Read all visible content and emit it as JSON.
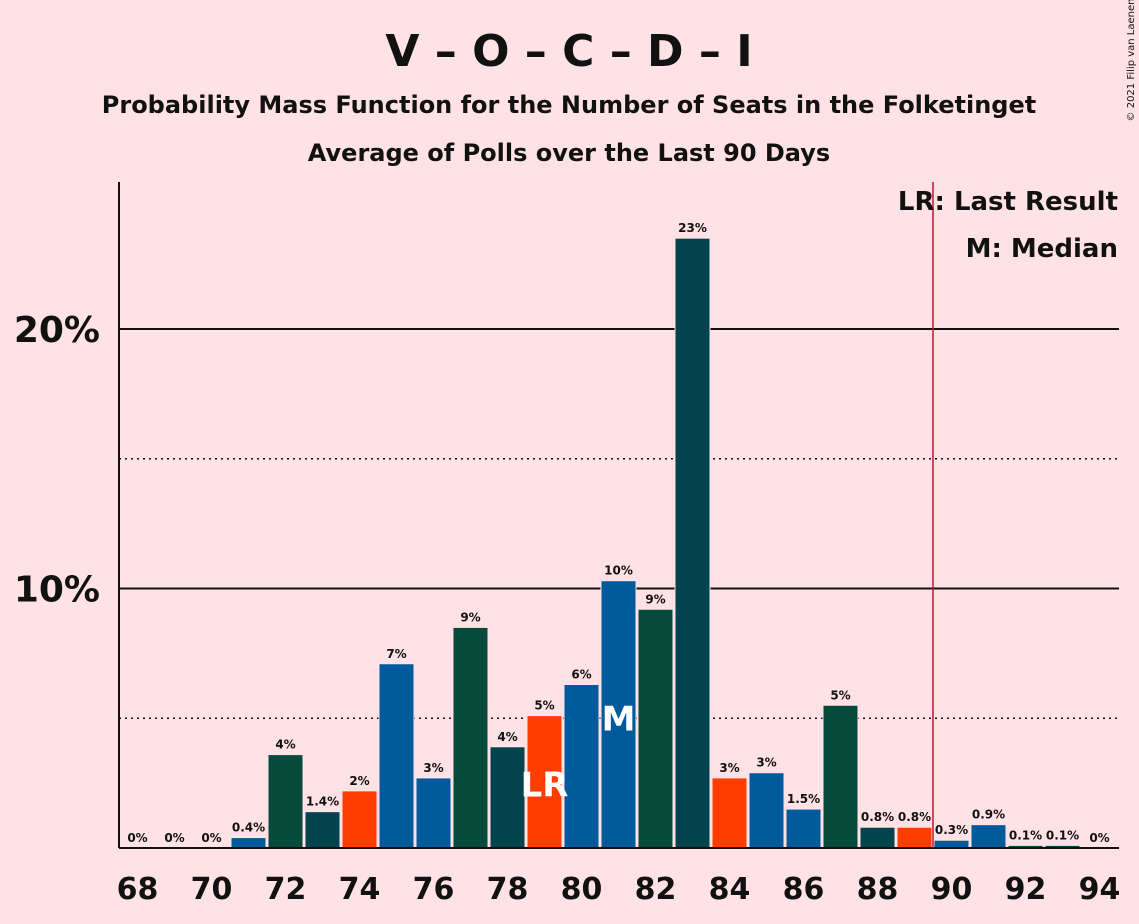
{
  "title": "V – O – C – D – I",
  "subtitle1": "Probability Mass Function for the Number of Seats in the Folketinget",
  "subtitle2": "Average of Polls over the Last 90 Days",
  "copyright": "© 2021 Filip van Laenen",
  "legend": {
    "lr": "LR: Last Result",
    "m": "M: Median"
  },
  "colors": {
    "background": "#FFE2E6",
    "blue": "#005A9C",
    "dark_green": "#064A3C",
    "dark_teal": "#01444E",
    "orange": "#FF3D00",
    "majority_line": "#C8102E"
  },
  "chart_data": {
    "type": "bar",
    "x": [
      68,
      69,
      70,
      71,
      72,
      73,
      74,
      75,
      76,
      77,
      78,
      79,
      80,
      81,
      82,
      83,
      84,
      85,
      86,
      87,
      88,
      89,
      90,
      91,
      92,
      93,
      94
    ],
    "values": [
      0,
      0,
      0,
      0.4,
      3.6,
      1.4,
      2.2,
      7.1,
      2.7,
      8.5,
      3.9,
      5.1,
      6.3,
      10.3,
      9.2,
      23.5,
      2.7,
      2.9,
      1.5,
      5.5,
      0.8,
      0.8,
      0.3,
      0.9,
      0.1,
      0.1,
      0
    ],
    "value_labels": [
      "0%",
      "0%",
      "0%",
      "0.4%",
      "4%",
      "1.4%",
      "2%",
      "7%",
      "3%",
      "9%",
      "4%",
      "5%",
      "6%",
      "10%",
      "9%",
      "23%",
      "3%",
      "3%",
      "1.5%",
      "5%",
      "0.8%",
      "0.8%",
      "0.3%",
      "0.9%",
      "0.1%",
      "0.1%",
      "0%"
    ],
    "bar_colors": [
      "blue",
      "blue",
      "blue",
      "blue",
      "dark_green",
      "dark_teal",
      "orange",
      "blue",
      "blue",
      "dark_green",
      "dark_teal",
      "orange",
      "blue",
      "blue",
      "dark_green",
      "dark_teal",
      "orange",
      "blue",
      "blue",
      "dark_green",
      "dark_teal",
      "orange",
      "blue",
      "blue",
      "dark_green",
      "dark_teal",
      "orange"
    ],
    "x_tick_labels": [
      "68",
      "70",
      "72",
      "74",
      "76",
      "78",
      "80",
      "82",
      "84",
      "86",
      "88",
      "90",
      "92",
      "94"
    ],
    "y_tick_labels": [
      "10%",
      "20%"
    ],
    "y_gridlines_solid": [
      10,
      20
    ],
    "y_gridlines_dotted": [
      5,
      15
    ],
    "ylim": [
      0,
      25.7
    ],
    "last_result_seat": 79,
    "median_seat": 81,
    "last_result_mark": "LR",
    "median_mark": "M",
    "majority_line_after_seat": 89.5,
    "legend_position": "top-right"
  }
}
